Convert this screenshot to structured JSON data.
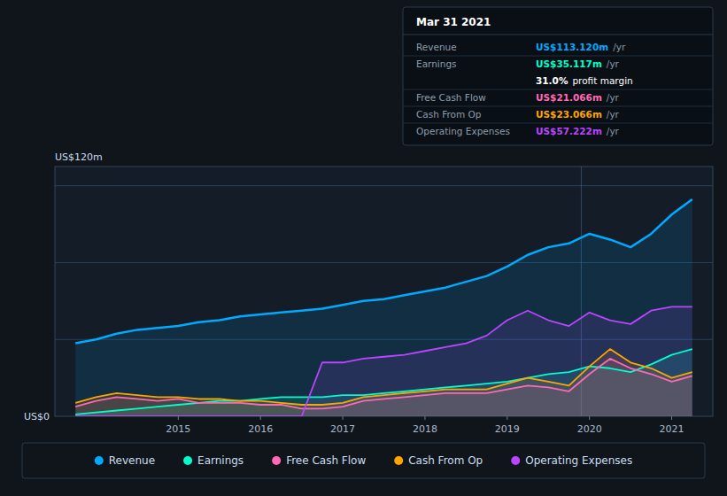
{
  "chart_data": {
    "type": "area",
    "ylabel": "US$120m",
    "annotations": [
      {
        "text": "US$0",
        "y": 0
      },
      {
        "x": 2019.9
      }
    ],
    "x": [
      2013.75,
      2014.0,
      2014.25,
      2014.5,
      2014.75,
      2015.0,
      2015.25,
      2015.5,
      2015.75,
      2016.0,
      2016.25,
      2016.5,
      2016.75,
      2017.0,
      2017.25,
      2017.5,
      2017.75,
      2018.0,
      2018.25,
      2018.5,
      2018.75,
      2019.0,
      2019.25,
      2019.5,
      2019.75,
      2020.0,
      2020.25,
      2020.5,
      2020.75,
      2021.0,
      2021.25
    ],
    "series": [
      {
        "name": "Revenue",
        "color": "#00aaff",
        "values": [
          38,
          40,
          43,
          45,
          46,
          47,
          49,
          50,
          52,
          53,
          54,
          55,
          56,
          58,
          60,
          61,
          63,
          65,
          67,
          70,
          73,
          78,
          84,
          88,
          90,
          95,
          92,
          88,
          95,
          105,
          113
        ]
      },
      {
        "name": "Earnings",
        "color": "#00ffcc",
        "values": [
          1,
          2,
          3,
          4,
          5,
          6,
          7,
          8,
          8,
          9,
          10,
          10,
          10,
          11,
          11,
          12,
          13,
          14,
          15,
          16,
          17,
          18,
          20,
          22,
          23,
          26,
          25,
          23,
          27,
          32,
          35
        ]
      },
      {
        "name": "Free Cash Flow",
        "color": "#ff69b4",
        "values": [
          5,
          8,
          10,
          9,
          8,
          9,
          7,
          7,
          7,
          6,
          6,
          4,
          4,
          5,
          8,
          9,
          10,
          11,
          12,
          12,
          12,
          14,
          16,
          15,
          13,
          22,
          30,
          25,
          22,
          18,
          21
        ]
      },
      {
        "name": "Cash From Op",
        "color": "#ffa500",
        "values": [
          7,
          10,
          12,
          11,
          10,
          10,
          9,
          9,
          8,
          8,
          7,
          6,
          6,
          7,
          10,
          11,
          12,
          13,
          14,
          14,
          14,
          17,
          20,
          18,
          16,
          26,
          35,
          28,
          25,
          20,
          23
        ]
      },
      {
        "name": "Operating Expenses",
        "color": "#bb44ff",
        "values": [
          0,
          0,
          0,
          0,
          0,
          0,
          0,
          0,
          0,
          0,
          0,
          0,
          28,
          28,
          30,
          31,
          32,
          34,
          36,
          38,
          42,
          50,
          55,
          50,
          47,
          54,
          50,
          48,
          55,
          57,
          57
        ]
      }
    ],
    "xlim": [
      2013.5,
      2021.5
    ],
    "xticks": [
      2015,
      2016,
      2017,
      2018,
      2019,
      2020,
      2021
    ],
    "ylim": [
      0,
      130
    ],
    "yticks": [
      40,
      80,
      120
    ],
    "grid": true,
    "tick_labels": "x",
    "legend": "bottom",
    "info_box": {
      "title": "Mar 31 2021",
      "rows": [
        {
          "label": "Revenue",
          "value": "US$113.120m",
          "suffix": "/yr",
          "color": "#00aaff"
        },
        {
          "label": "Earnings",
          "value": "US$35.117m",
          "suffix": "/yr",
          "color": "#00ffcc"
        },
        {
          "value": "31.0%",
          "suffix": "profit margin",
          "color": "#ffffff"
        },
        {
          "label": "Free Cash Flow",
          "value": "US$21.066m",
          "suffix": "/yr",
          "color": "#ff69b4"
        },
        {
          "label": "Cash From Op",
          "value": "US$23.066m",
          "suffix": "/yr",
          "color": "#ffa500"
        },
        {
          "label": "Operating Expenses",
          "value": "US$57.222m",
          "suffix": "/yr",
          "color": "#bb44ff"
        }
      ]
    }
  }
}
